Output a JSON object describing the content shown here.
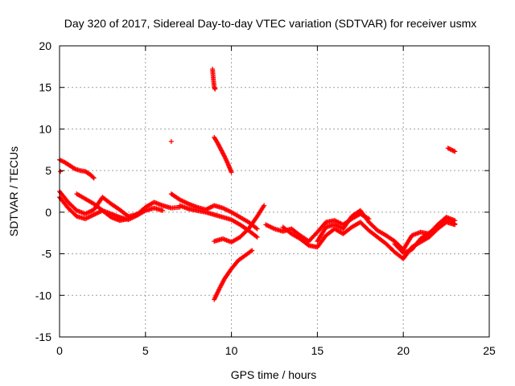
{
  "chart_data": {
    "type": "scatter",
    "title": "Day 320 of 2017, Sidereal Day-to-day VTEC variation (SDTVAR) for receiver usmx",
    "xlabel": "GPS time / hours",
    "ylabel": "SDTVAR / TECUs",
    "xlim": [
      0,
      25
    ],
    "ylim": [
      -15,
      20
    ],
    "xticks": [
      0,
      5,
      10,
      15,
      20,
      25
    ],
    "yticks": [
      -15,
      -10,
      -5,
      0,
      5,
      10,
      15,
      20
    ],
    "xtick_labels": [
      "0",
      "5",
      "10",
      "15",
      "20",
      "25"
    ],
    "ytick_labels": [
      "-15",
      "-10",
      "-5",
      "0",
      "5",
      "10",
      "15",
      "20"
    ],
    "grid": true,
    "marker": "+",
    "color": "#ff0000",
    "series": [
      {
        "name": "arc-top-early",
        "x": [
          0.0,
          0.3,
          0.6,
          0.9,
          1.2,
          1.5,
          1.8,
          2.0
        ],
        "y": [
          6.3,
          6.0,
          5.6,
          5.2,
          5.0,
          4.9,
          4.5,
          4.1
        ]
      },
      {
        "name": "point-0",
        "x": [
          0.05
        ],
        "y": [
          4.9
        ]
      },
      {
        "name": "arc-main-1",
        "x": [
          0.0,
          0.5,
          1.0,
          1.5,
          2.0,
          2.5,
          3.0,
          3.5,
          4.0,
          4.5,
          5.0,
          5.5,
          6.0,
          6.5,
          7.0
        ],
        "y": [
          2.5,
          1.2,
          0.2,
          -0.2,
          0.3,
          1.8,
          1.0,
          0.3,
          -0.5,
          -0.3,
          0.6,
          1.2,
          0.8,
          0.5,
          0.6
        ]
      },
      {
        "name": "arc-main-2",
        "x": [
          0.0,
          0.5,
          1.0,
          1.5,
          2.0,
          2.5,
          3.0,
          3.5,
          4.0,
          4.5,
          5.0,
          5.5,
          6.0
        ],
        "y": [
          1.8,
          0.5,
          -0.5,
          -0.8,
          -0.3,
          0.2,
          -0.2,
          -0.6,
          -0.9,
          -0.4,
          0.2,
          0.5,
          0.2
        ]
      },
      {
        "name": "arc-main-3",
        "x": [
          1.0,
          1.5,
          2.0,
          2.5,
          3.0,
          3.5,
          4.0,
          4.5
        ],
        "y": [
          2.2,
          1.6,
          1.0,
          0.2,
          -0.6,
          -1.0,
          -0.8,
          -0.2
        ]
      },
      {
        "name": "arc-mid-1",
        "x": [
          6.5,
          7.0,
          7.5,
          8.0,
          8.5,
          9.0,
          9.5,
          10.0,
          10.5,
          11.0,
          11.5
        ],
        "y": [
          2.2,
          1.5,
          1.0,
          0.6,
          0.3,
          0.8,
          0.5,
          0.0,
          -0.6,
          -1.2,
          -2.0
        ]
      },
      {
        "name": "arc-mid-2",
        "x": [
          7.0,
          7.5,
          8.0,
          8.5,
          9.0,
          9.5,
          10.0,
          10.5,
          11.0,
          11.5
        ],
        "y": [
          0.8,
          0.4,
          0.2,
          0.0,
          -0.3,
          -0.6,
          -0.9,
          -1.5,
          -2.2,
          -3.0
        ]
      },
      {
        "name": "point-6.5",
        "x": [
          6.5
        ],
        "y": [
          8.5
        ]
      },
      {
        "name": "arc-spike-up",
        "x": [
          8.9,
          8.95,
          9.0,
          9.05
        ],
        "y": [
          17.2,
          16.0,
          15.0,
          14.8
        ]
      },
      {
        "name": "arc-descend-upper",
        "x": [
          9.0,
          9.2,
          9.4,
          9.6,
          9.8,
          10.0
        ],
        "y": [
          9.0,
          8.3,
          7.5,
          6.7,
          5.8,
          4.8
        ]
      },
      {
        "name": "arc-lower",
        "x": [
          9.0,
          9.3,
          9.6,
          10.0,
          10.4,
          10.8,
          11.2
        ],
        "y": [
          -10.5,
          -9.2,
          -8.0,
          -6.8,
          -5.8,
          -5.2,
          -4.6
        ]
      },
      {
        "name": "arc-cross-up",
        "x": [
          9.0,
          9.5,
          10.0,
          10.5,
          11.0,
          11.5,
          11.9
        ],
        "y": [
          -3.5,
          -3.2,
          -3.6,
          -3.0,
          -2.0,
          -0.5,
          0.8
        ]
      },
      {
        "name": "arc-late-1",
        "x": [
          12.0,
          12.5,
          13.0,
          13.5,
          14.0,
          14.5,
          15.0,
          15.5,
          16.0,
          16.5,
          17.0,
          17.5,
          18.0
        ],
        "y": [
          -1.5,
          -2.0,
          -2.3,
          -2.0,
          -2.8,
          -3.5,
          -2.4,
          -1.2,
          -1.0,
          -1.5,
          -0.8,
          -0.2,
          -0.8
        ]
      },
      {
        "name": "arc-late-2",
        "x": [
          13.0,
          13.5,
          14.0,
          14.5,
          15.0,
          15.5,
          16.0,
          16.5,
          17.0,
          17.5,
          18.0,
          18.5,
          19.0,
          19.5,
          20.0,
          20.5,
          21.0,
          21.5,
          22.0,
          22.5,
          23.0
        ],
        "y": [
          -1.8,
          -2.6,
          -3.2,
          -4.0,
          -4.2,
          -2.8,
          -2.0,
          -2.6,
          -1.8,
          -1.2,
          -2.2,
          -3.0,
          -3.8,
          -4.8,
          -5.6,
          -4.2,
          -3.6,
          -3.0,
          -2.0,
          -1.2,
          -1.5
        ]
      },
      {
        "name": "arc-late-3",
        "x": [
          15.0,
          15.5,
          16.0,
          16.5,
          17.0,
          17.5,
          18.0,
          18.5,
          19.0,
          19.5,
          20.0,
          20.5,
          21.0,
          21.5,
          22.0,
          22.5,
          23.0
        ],
        "y": [
          -3.5,
          -1.8,
          -1.5,
          -2.0,
          -0.5,
          0.2,
          -1.2,
          -2.2,
          -2.8,
          -3.5,
          -4.5,
          -2.8,
          -2.4,
          -2.6,
          -1.5,
          -0.6,
          -1.0
        ]
      },
      {
        "name": "arc-late-4",
        "x": [
          19.5,
          20.0,
          20.5,
          21.0,
          21.5,
          22.0,
          22.5,
          23.0
        ],
        "y": [
          -3.8,
          -4.9,
          -4.5,
          -3.2,
          -2.5,
          -1.8,
          -1.0,
          -1.4
        ]
      },
      {
        "name": "points-22.5",
        "x": [
          22.6,
          22.8,
          23.0
        ],
        "y": [
          7.7,
          7.5,
          7.3
        ]
      }
    ]
  }
}
